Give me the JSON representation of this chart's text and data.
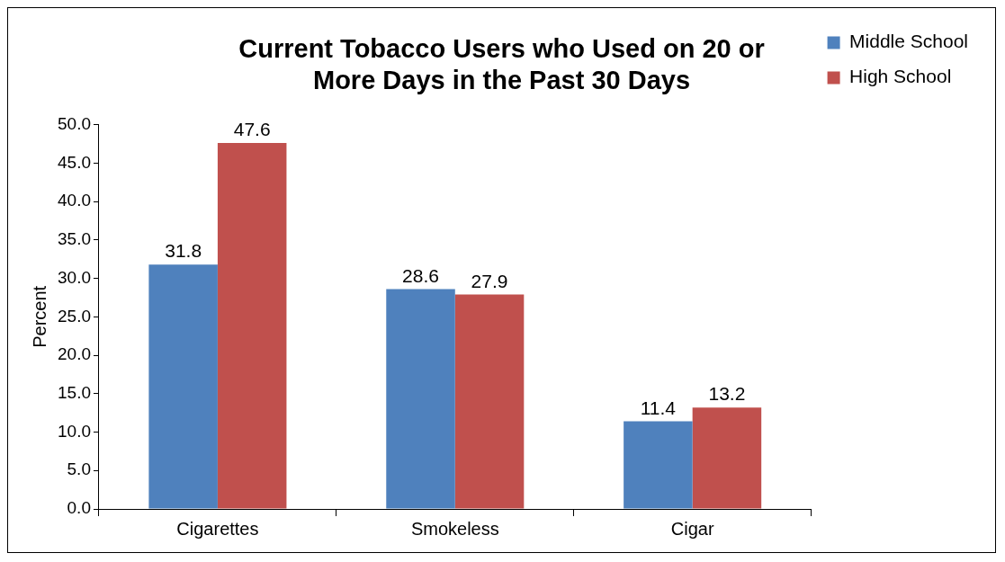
{
  "chart_data": {
    "type": "bar",
    "title": "Current Tobacco Users who Used on 20 or More Days in the Past 30 Days",
    "ylabel": "Percent",
    "categories": [
      "Cigarettes",
      "Smokeless",
      "Cigar"
    ],
    "series": [
      {
        "name": "Middle School",
        "color": "#4f81bd",
        "values": [
          31.8,
          28.6,
          11.4
        ]
      },
      {
        "name": "High School",
        "color": "#c0504d",
        "values": [
          47.6,
          27.9,
          13.2
        ]
      }
    ],
    "ylim": [
      0,
      50
    ],
    "yticks": [
      {
        "value": 0,
        "label": "0.0"
      },
      {
        "value": 5,
        "label": "5.0"
      },
      {
        "value": 10,
        "label": "10.0"
      },
      {
        "value": 15,
        "label": "15.0"
      },
      {
        "value": 20,
        "label": "20.0"
      },
      {
        "value": 25,
        "label": "25.0"
      },
      {
        "value": 30,
        "label": "30.0"
      },
      {
        "value": 35,
        "label": "35.0"
      },
      {
        "value": 40,
        "label": "40.0"
      },
      {
        "value": 45,
        "label": "45.0"
      },
      {
        "value": 50,
        "label": "50.0"
      }
    ],
    "grid": false,
    "legend": "top right",
    "data_labels": true
  }
}
